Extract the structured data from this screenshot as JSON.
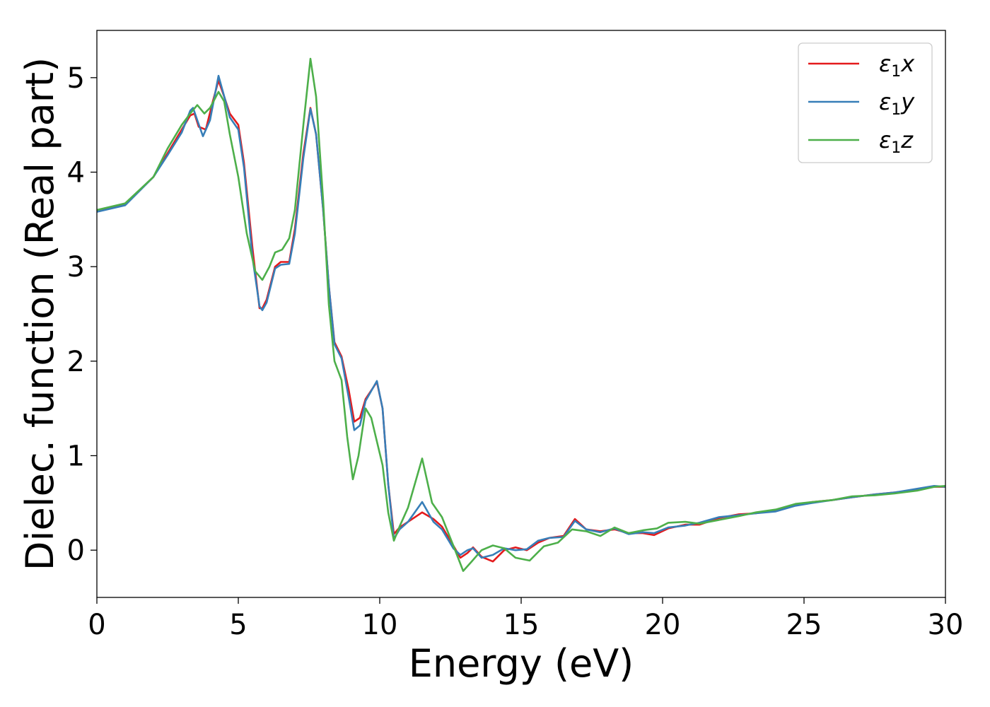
{
  "chart_data": {
    "type": "line",
    "title": "",
    "xlabel": "Energy (eV)",
    "ylabel": "Dielec. function (Real part)",
    "xlim": [
      0,
      30
    ],
    "ylim": [
      -0.5,
      5.5
    ],
    "xticks": [
      0,
      5,
      10,
      15,
      20,
      25,
      30
    ],
    "xtick_labels": [
      "0",
      "5",
      "10",
      "15",
      "20",
      "25",
      "30"
    ],
    "yticks": [
      0,
      1,
      2,
      3,
      4,
      5
    ],
    "ytick_labels": [
      "0",
      "1",
      "2",
      "3",
      "4",
      "5"
    ],
    "grid": false,
    "legend_position": "top-right",
    "series": [
      {
        "name": "ε1x",
        "label_base": "ε",
        "label_sub": "1",
        "label_var": "x",
        "color": "#e41a1c",
        "points": [
          [
            0,
            3.59
          ],
          [
            1,
            3.66
          ],
          [
            2,
            3.95
          ],
          [
            2.5,
            4.2
          ],
          [
            3,
            4.45
          ],
          [
            3.3,
            4.6
          ],
          [
            3.45,
            4.62
          ],
          [
            3.6,
            4.48
          ],
          [
            3.85,
            4.45
          ],
          [
            4.1,
            4.75
          ],
          [
            4.3,
            4.97
          ],
          [
            4.5,
            4.8
          ],
          [
            4.7,
            4.62
          ],
          [
            5.0,
            4.5
          ],
          [
            5.2,
            4.1
          ],
          [
            5.5,
            3.2
          ],
          [
            5.75,
            2.56
          ],
          [
            5.85,
            2.56
          ],
          [
            6.0,
            2.65
          ],
          [
            6.3,
            3.0
          ],
          [
            6.5,
            3.05
          ],
          [
            6.8,
            3.05
          ],
          [
            7.0,
            3.4
          ],
          [
            7.3,
            4.2
          ],
          [
            7.55,
            4.68
          ],
          [
            7.75,
            4.4
          ],
          [
            8.0,
            3.6
          ],
          [
            8.2,
            2.8
          ],
          [
            8.4,
            2.2
          ],
          [
            8.65,
            2.05
          ],
          [
            8.9,
            1.7
          ],
          [
            9.1,
            1.36
          ],
          [
            9.3,
            1.4
          ],
          [
            9.5,
            1.6
          ],
          [
            9.9,
            1.78
          ],
          [
            10.1,
            1.5
          ],
          [
            10.3,
            0.7
          ],
          [
            10.5,
            0.17
          ],
          [
            10.7,
            0.24
          ],
          [
            11.0,
            0.3
          ],
          [
            11.5,
            0.4
          ],
          [
            11.9,
            0.33
          ],
          [
            12.2,
            0.25
          ],
          [
            12.6,
            0.05
          ],
          [
            12.85,
            -0.08
          ],
          [
            13.1,
            -0.03
          ],
          [
            13.3,
            0.03
          ],
          [
            13.6,
            -0.07
          ],
          [
            14.0,
            -0.12
          ],
          [
            14.4,
            0.0
          ],
          [
            14.8,
            0.03
          ],
          [
            15.2,
            0.0
          ],
          [
            15.6,
            0.08
          ],
          [
            16.0,
            0.13
          ],
          [
            16.5,
            0.15
          ],
          [
            16.9,
            0.33
          ],
          [
            17.3,
            0.22
          ],
          [
            17.8,
            0.2
          ],
          [
            18.3,
            0.22
          ],
          [
            18.8,
            0.18
          ],
          [
            19.3,
            0.18
          ],
          [
            19.7,
            0.16
          ],
          [
            20.2,
            0.23
          ],
          [
            20.8,
            0.27
          ],
          [
            21.3,
            0.27
          ],
          [
            22.0,
            0.34
          ],
          [
            22.7,
            0.38
          ],
          [
            23.3,
            0.39
          ],
          [
            24.0,
            0.42
          ],
          [
            24.7,
            0.48
          ],
          [
            25.3,
            0.51
          ],
          [
            26.0,
            0.53
          ],
          [
            26.7,
            0.56
          ],
          [
            27.5,
            0.59
          ],
          [
            28.2,
            0.61
          ],
          [
            29.0,
            0.64
          ],
          [
            29.6,
            0.67
          ],
          [
            30,
            0.67
          ]
        ]
      },
      {
        "name": "ε1y",
        "label_base": "ε",
        "label_sub": "1",
        "label_var": "y",
        "color": "#377eb8",
        "points": [
          [
            0,
            3.58
          ],
          [
            1,
            3.65
          ],
          [
            2,
            3.95
          ],
          [
            2.5,
            4.18
          ],
          [
            3,
            4.42
          ],
          [
            3.3,
            4.65
          ],
          [
            3.4,
            4.68
          ],
          [
            3.55,
            4.55
          ],
          [
            3.75,
            4.38
          ],
          [
            4.0,
            4.55
          ],
          [
            4.3,
            5.02
          ],
          [
            4.55,
            4.75
          ],
          [
            4.7,
            4.58
          ],
          [
            5.0,
            4.45
          ],
          [
            5.2,
            4.05
          ],
          [
            5.5,
            3.1
          ],
          [
            5.75,
            2.58
          ],
          [
            5.85,
            2.54
          ],
          [
            6.0,
            2.62
          ],
          [
            6.3,
            2.98
          ],
          [
            6.5,
            3.02
          ],
          [
            6.8,
            3.03
          ],
          [
            7.0,
            3.35
          ],
          [
            7.3,
            4.15
          ],
          [
            7.55,
            4.67
          ],
          [
            7.75,
            4.4
          ],
          [
            8.0,
            3.6
          ],
          [
            8.2,
            2.8
          ],
          [
            8.4,
            2.18
          ],
          [
            8.65,
            2.03
          ],
          [
            8.9,
            1.62
          ],
          [
            9.1,
            1.27
          ],
          [
            9.3,
            1.32
          ],
          [
            9.5,
            1.58
          ],
          [
            9.9,
            1.79
          ],
          [
            10.1,
            1.5
          ],
          [
            10.3,
            0.7
          ],
          [
            10.5,
            0.12
          ],
          [
            10.7,
            0.22
          ],
          [
            11.0,
            0.3
          ],
          [
            11.5,
            0.51
          ],
          [
            11.9,
            0.3
          ],
          [
            12.2,
            0.22
          ],
          [
            12.6,
            0.02
          ],
          [
            12.85,
            -0.05
          ],
          [
            13.1,
            0.0
          ],
          [
            13.3,
            0.02
          ],
          [
            13.6,
            -0.08
          ],
          [
            14.0,
            -0.05
          ],
          [
            14.4,
            0.02
          ],
          [
            14.8,
            0.0
          ],
          [
            15.2,
            0.01
          ],
          [
            15.6,
            0.1
          ],
          [
            16.0,
            0.13
          ],
          [
            16.5,
            0.14
          ],
          [
            16.9,
            0.31
          ],
          [
            17.3,
            0.22
          ],
          [
            17.8,
            0.19
          ],
          [
            18.3,
            0.23
          ],
          [
            18.8,
            0.17
          ],
          [
            19.3,
            0.19
          ],
          [
            19.7,
            0.18
          ],
          [
            20.2,
            0.24
          ],
          [
            20.8,
            0.26
          ],
          [
            21.3,
            0.29
          ],
          [
            22.0,
            0.35
          ],
          [
            22.7,
            0.37
          ],
          [
            23.3,
            0.39
          ],
          [
            24.0,
            0.41
          ],
          [
            24.7,
            0.47
          ],
          [
            25.3,
            0.5
          ],
          [
            26.0,
            0.53
          ],
          [
            26.7,
            0.56
          ],
          [
            27.5,
            0.59
          ],
          [
            28.2,
            0.61
          ],
          [
            29.0,
            0.65
          ],
          [
            29.6,
            0.68
          ],
          [
            30,
            0.67
          ]
        ]
      },
      {
        "name": "ε1z",
        "label_base": "ε",
        "label_sub": "1",
        "label_var": "z",
        "color": "#4daf4a",
        "points": [
          [
            0,
            3.6
          ],
          [
            1,
            3.67
          ],
          [
            2,
            3.95
          ],
          [
            2.5,
            4.25
          ],
          [
            3,
            4.5
          ],
          [
            3.3,
            4.62
          ],
          [
            3.55,
            4.71
          ],
          [
            3.8,
            4.62
          ],
          [
            4.0,
            4.68
          ],
          [
            4.3,
            4.85
          ],
          [
            4.5,
            4.75
          ],
          [
            4.7,
            4.4
          ],
          [
            5.0,
            3.95
          ],
          [
            5.3,
            3.35
          ],
          [
            5.6,
            2.95
          ],
          [
            5.85,
            2.86
          ],
          [
            6.1,
            3.0
          ],
          [
            6.3,
            3.15
          ],
          [
            6.55,
            3.18
          ],
          [
            6.8,
            3.3
          ],
          [
            7.0,
            3.6
          ],
          [
            7.3,
            4.5
          ],
          [
            7.55,
            5.2
          ],
          [
            7.75,
            4.8
          ],
          [
            8.0,
            3.7
          ],
          [
            8.2,
            2.6
          ],
          [
            8.4,
            2.0
          ],
          [
            8.65,
            1.8
          ],
          [
            8.85,
            1.2
          ],
          [
            9.05,
            0.75
          ],
          [
            9.25,
            1.0
          ],
          [
            9.5,
            1.5
          ],
          [
            9.7,
            1.4
          ],
          [
            10.1,
            0.9
          ],
          [
            10.3,
            0.4
          ],
          [
            10.5,
            0.1
          ],
          [
            10.7,
            0.25
          ],
          [
            11.0,
            0.45
          ],
          [
            11.5,
            0.97
          ],
          [
            11.85,
            0.5
          ],
          [
            12.2,
            0.35
          ],
          [
            12.6,
            0.05
          ],
          [
            12.95,
            -0.22
          ],
          [
            13.25,
            -0.12
          ],
          [
            13.6,
            0.0
          ],
          [
            14.0,
            0.05
          ],
          [
            14.4,
            0.02
          ],
          [
            14.8,
            -0.08
          ],
          [
            15.3,
            -0.11
          ],
          [
            15.8,
            0.04
          ],
          [
            16.3,
            0.08
          ],
          [
            16.8,
            0.22
          ],
          [
            17.3,
            0.2
          ],
          [
            17.8,
            0.15
          ],
          [
            18.3,
            0.24
          ],
          [
            18.8,
            0.18
          ],
          [
            19.3,
            0.21
          ],
          [
            19.8,
            0.23
          ],
          [
            20.2,
            0.29
          ],
          [
            20.8,
            0.3
          ],
          [
            21.3,
            0.28
          ],
          [
            22.0,
            0.32
          ],
          [
            22.7,
            0.36
          ],
          [
            23.3,
            0.4
          ],
          [
            24.0,
            0.43
          ],
          [
            24.7,
            0.49
          ],
          [
            25.3,
            0.51
          ],
          [
            26.0,
            0.53
          ],
          [
            26.7,
            0.57
          ],
          [
            27.5,
            0.58
          ],
          [
            28.2,
            0.6
          ],
          [
            29.0,
            0.63
          ],
          [
            29.6,
            0.67
          ],
          [
            30,
            0.68
          ]
        ]
      }
    ]
  }
}
